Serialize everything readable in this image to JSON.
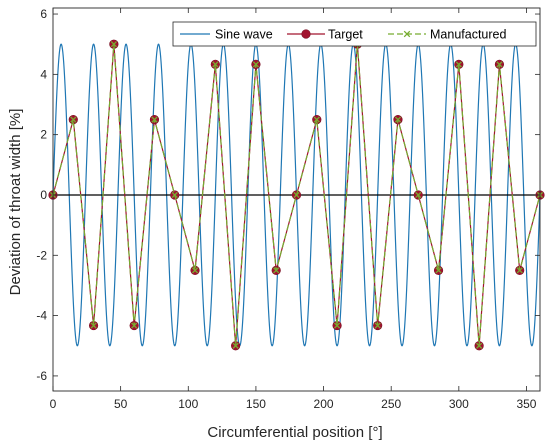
{
  "chart_data": {
    "type": "line",
    "xlabel": "Circumferential position [°]",
    "ylabel": "Deviation of throat width [%]",
    "xlim": [
      0,
      360
    ],
    "ylim": [
      -6.5,
      6.2
    ],
    "xticks": [
      0,
      50,
      100,
      150,
      200,
      250,
      300,
      350
    ],
    "yticks": [
      -6,
      -4,
      -2,
      0,
      2,
      4,
      6
    ],
    "legend_position": "top-right",
    "grid": false,
    "zero_line": true,
    "series": [
      {
        "name": "Sine wave",
        "kind": "sine",
        "amplitude": 5,
        "period_deg": 24,
        "color": "#1f77b4"
      },
      {
        "name": "Target",
        "color": "#a2142f",
        "marker": "circle",
        "x": [
          0,
          15,
          30,
          45,
          60,
          75,
          90,
          105,
          120,
          135,
          150,
          165,
          180,
          195,
          210,
          225,
          240,
          255,
          270,
          285,
          300,
          315,
          330,
          345,
          360
        ],
        "y": [
          0,
          2.5,
          -4.33,
          5,
          -4.33,
          2.5,
          0,
          -2.5,
          4.33,
          -5,
          4.33,
          -2.5,
          0,
          2.5,
          -4.33,
          5,
          -4.33,
          2.5,
          0,
          -2.5,
          4.33,
          -5,
          4.33,
          -2.5,
          0
        ]
      },
      {
        "name": "Manufactured",
        "color": "#77ac30",
        "marker": "x",
        "dashed": true,
        "x": [
          0,
          15,
          30,
          45,
          60,
          75,
          90,
          105,
          120,
          135,
          150,
          165,
          180,
          195,
          210,
          225,
          240,
          255,
          270,
          285,
          300,
          315,
          330,
          345,
          360
        ],
        "y": [
          0,
          2.5,
          -4.33,
          5,
          -4.33,
          2.5,
          0,
          -2.5,
          4.33,
          -5,
          4.33,
          -2.5,
          0,
          2.5,
          -4.33,
          5,
          -4.33,
          2.5,
          0,
          -2.5,
          4.33,
          -5,
          4.33,
          -2.5,
          0
        ]
      }
    ]
  }
}
